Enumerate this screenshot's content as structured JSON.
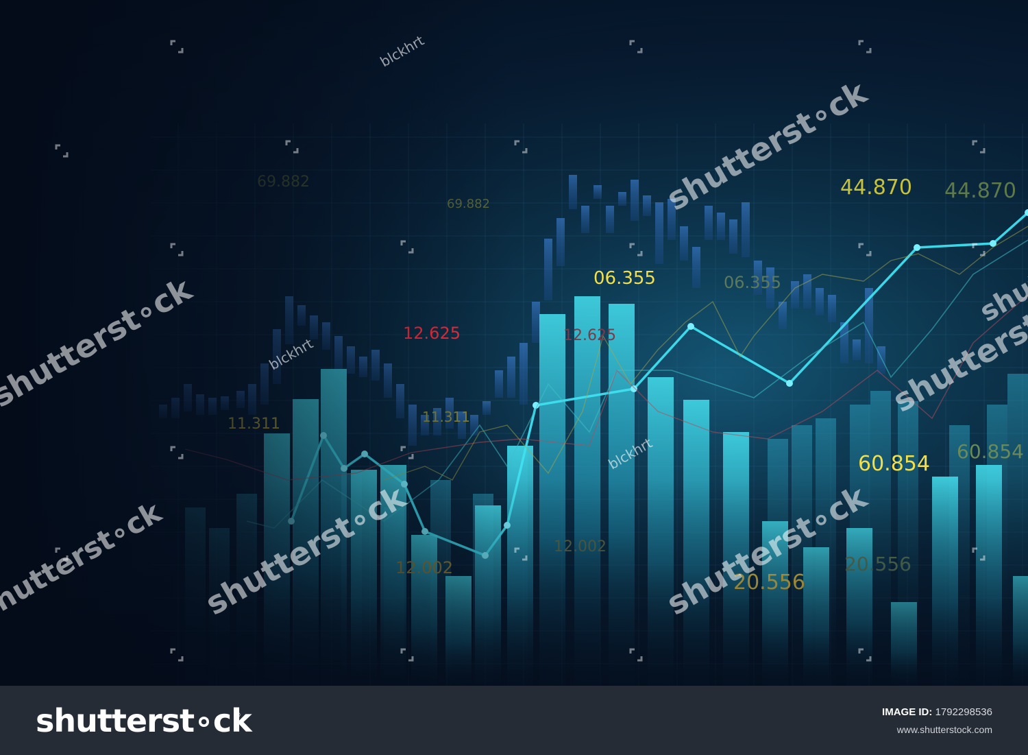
{
  "photo": {
    "description_free": true,
    "price_labels": [
      {
        "text": "69.882",
        "color": "#4a5a36"
      },
      {
        "text": "69.882",
        "color": "#5c6a3a"
      },
      {
        "text": "44.870",
        "color": "#c7c23d"
      },
      {
        "text": "44.870",
        "color": "#5f7a4a"
      },
      {
        "text": "06.355",
        "color": "#f2e04a"
      },
      {
        "text": "06.355",
        "color": "#5c7a5a"
      },
      {
        "text": "12.625",
        "color": "#ff2f3f"
      },
      {
        "text": "12.625",
        "color": "#7a3a48"
      },
      {
        "text": "11.311",
        "color": "#c7b23d"
      },
      {
        "text": "11.311",
        "color": "#8a8a3a"
      },
      {
        "text": "60.854",
        "color": "#f2e04a"
      },
      {
        "text": "60.854",
        "color": "#6a8a5a"
      },
      {
        "text": "12.002",
        "color": "#a08a3a"
      },
      {
        "text": "12.002",
        "color": "#5a6a4a"
      },
      {
        "text": "20.556",
        "color": "#e8c84a"
      },
      {
        "text": "20.556",
        "color": "#5a7a5a"
      }
    ],
    "watermarks": [
      {
        "text": "shutterst∘ck"
      },
      {
        "text": "shutterst∘ck"
      },
      {
        "text": "shutterst∘ck"
      },
      {
        "text": "shutterst∘ck"
      },
      {
        "text": "shutterst∘ck"
      },
      {
        "text": "shutterst∘ck"
      },
      {
        "text": "shutterst∘ck"
      }
    ],
    "credits": [
      {
        "text": "blckhrt"
      },
      {
        "text": "blckhrt"
      },
      {
        "text": "blckhrt"
      }
    ]
  },
  "footer": {
    "brand": "shutterst∘ck",
    "brand_mark": "®",
    "image_id_label": "IMAGE ID:",
    "image_id_value": "1792298536",
    "site_url": "www.shutterstock.com"
  }
}
